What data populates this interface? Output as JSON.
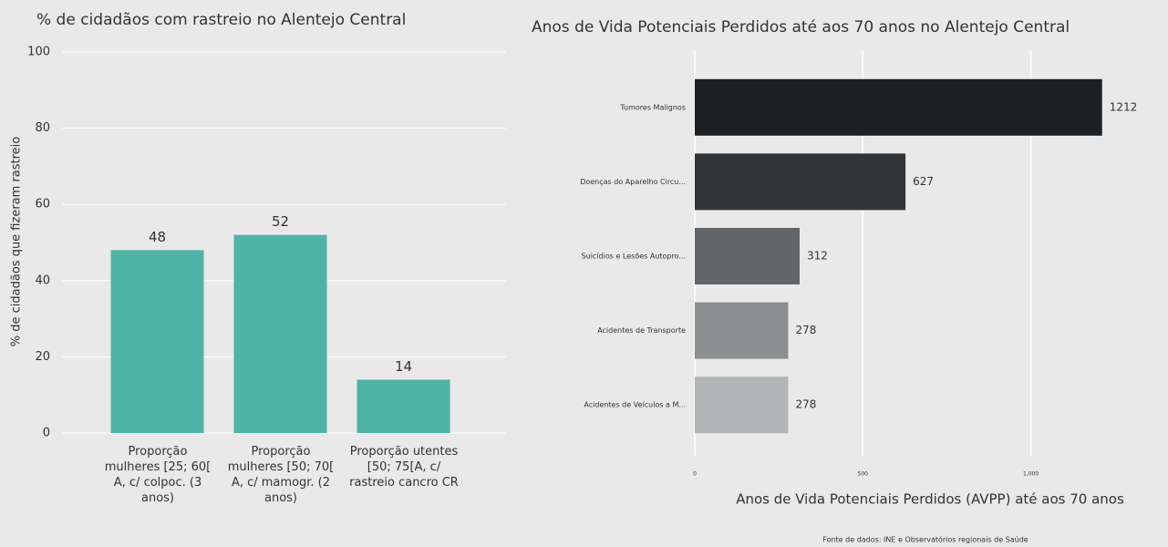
{
  "chart_data": [
    {
      "type": "bar",
      "title": "% de cidadãos com rastreio no Alentejo Central",
      "y_label": "% de cidadãos que fizeram rastreio",
      "categories": [
        "Proporção mulheres [25; 60[ A, c/ colpoc. (3 anos)",
        "Proporção mulheres [50; 70[ A, c/ mamogr. (2 anos)",
        "Proporção utentes [50; 75[A, c/ rastreio cancro CR"
      ],
      "values": [
        48,
        52,
        14
      ],
      "color": "#4fb3a6",
      "ylim": [
        0,
        100
      ],
      "yticks": [
        0,
        20,
        40,
        60,
        80,
        100
      ],
      "grid": true
    },
    {
      "type": "hbar",
      "title": "Anos de Vida Potenciais Perdidos até aos 70 anos no Alentejo Central",
      "x_label": "Anos de Vida Potenciais Perdidos (AVPP) até aos 70 anos",
      "categories": [
        "Tumores Malignos",
        "Doenças do Aparelho Circu...",
        "Suicídios e Lesões Autopro...",
        "Acidentes de Transporte",
        "Acidentes de Veículos a M..."
      ],
      "values": [
        1212,
        627,
        312,
        278,
        278
      ],
      "colors": [
        "#1c2022",
        "#2f3538",
        "#5f6568",
        "#8a8e8f",
        "#b3b6b6"
      ],
      "xlim": [
        0,
        1400
      ],
      "xticks": [
        0,
        500,
        {
          "value": 1000,
          "label": "1,000"
        }
      ],
      "grid": true,
      "source": "Fonte de dados: INE e Observatórios regionais de Saúde"
    }
  ]
}
